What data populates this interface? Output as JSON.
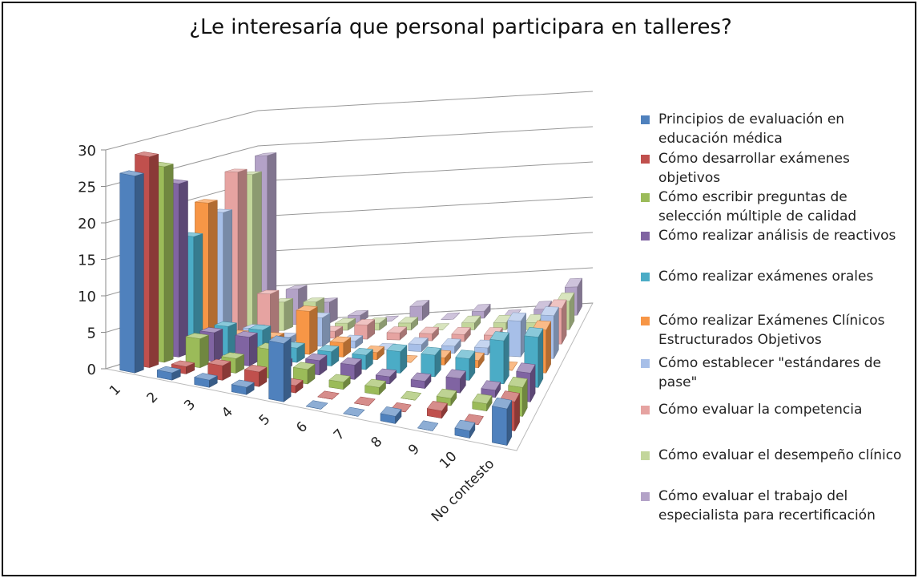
{
  "chart_data": {
    "type": "bar3d",
    "title": "¿Le interesaría que personal participara en talleres?",
    "categories": [
      "1",
      "2",
      "3",
      "4",
      "5",
      "6",
      "7",
      "8",
      "9",
      "10",
      "No contesto"
    ],
    "ylim": [
      0,
      30
    ],
    "yticks": [
      0,
      5,
      10,
      15,
      20,
      25,
      30
    ],
    "grid": true,
    "series": [
      {
        "name": "Principios de evaluación en educación médica",
        "color": "#4f81bd",
        "values": [
          27,
          1,
          1,
          1,
          8,
          0,
          0,
          1,
          0,
          1,
          5
        ]
      },
      {
        "name": "Cómo desarrollar exámenes objetivos",
        "color": "#c0504d",
        "values": [
          29,
          1,
          2,
          2,
          1,
          0,
          0,
          0,
          1,
          0,
          4
        ]
      },
      {
        "name": "Cómo escribir preguntas de selección múltiple de calidad",
        "color": "#9bbb59",
        "values": [
          27,
          4,
          2,
          4,
          2,
          1,
          1,
          0,
          1,
          1,
          4
        ]
      },
      {
        "name": "Cómo realizar análisis de reactivos",
        "color": "#8064a2",
        "values": [
          24,
          4,
          4,
          1,
          2,
          2,
          1,
          1,
          2,
          1,
          4
        ]
      },
      {
        "name": "Cómo realizar exámenes orales",
        "color": "#4bacc6",
        "values": [
          16,
          4,
          4,
          2,
          2,
          2,
          3,
          3,
          3,
          6,
          7
        ]
      },
      {
        "name": "Cómo realizar Exámenes Clínicos Estructurados Objetivos",
        "color": "#f79646",
        "values": [
          20,
          2,
          2,
          6,
          2,
          1,
          0,
          1,
          1,
          0,
          6
        ]
      },
      {
        "name": "Cómo establecer \"estándares de pase\"",
        "color": "#a7bfe8",
        "values": [
          18,
          2,
          1,
          4,
          1,
          0,
          1,
          1,
          1,
          5,
          6
        ]
      },
      {
        "name": "Cómo evaluar la competencia",
        "color": "#e6a3a1",
        "values": [
          23,
          6,
          0,
          1,
          2,
          1,
          1,
          1,
          1,
          0,
          5
        ]
      },
      {
        "name": "Cómo evaluar el desempeño clínico",
        "color": "#c3d69b",
        "values": [
          22,
          4,
          4,
          1,
          1,
          1,
          0,
          1,
          1,
          1,
          4
        ]
      },
      {
        "name": "Cómo evaluar el trabajo del especialista para recertificación",
        "color": "#b3a2c7",
        "values": [
          24,
          5,
          3,
          1,
          0,
          2,
          0,
          1,
          0,
          1,
          4
        ]
      }
    ]
  }
}
